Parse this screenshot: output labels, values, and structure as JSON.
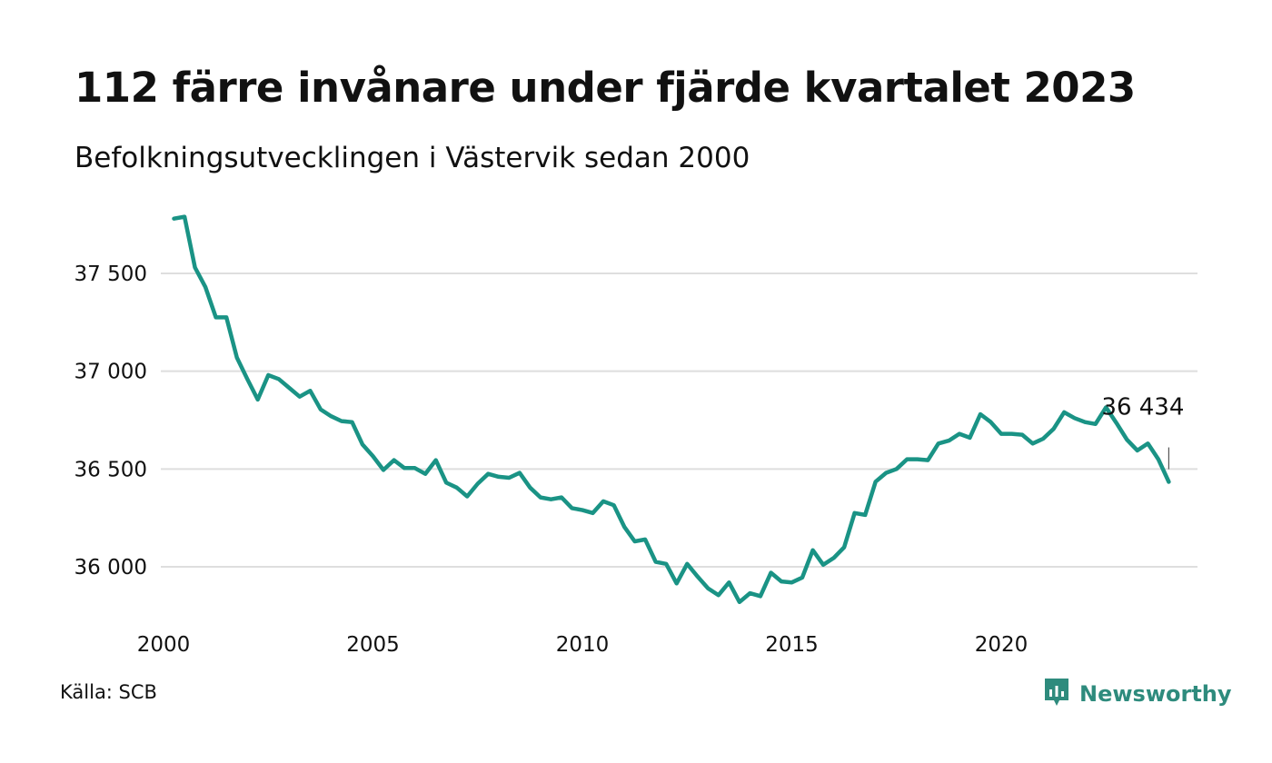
{
  "header": {
    "title": "112 färre invånare under fjärde kvartalet 2023",
    "subtitle": "Befolkningsutvecklingen i Västervik sedan 2000"
  },
  "footer": {
    "source": "Källa: SCB",
    "brand": "Newsworthy"
  },
  "colors": {
    "line": "#1a9385",
    "brand": "#2e8b7d",
    "grid": "#dedede"
  },
  "icons": {
    "brand_logo": "chart-speech-bubble-icon"
  },
  "chart_data": {
    "type": "line",
    "title": "112 färre invånare under fjärde kvartalet 2023",
    "subtitle": "Befolkningsutvecklingen i Västervik sedan 2000",
    "xlabel": "",
    "ylabel": "",
    "xlim": [
      2000,
      2024.6
    ],
    "ylim": [
      35800,
      37850
    ],
    "grid": true,
    "y_ticks": [
      36000,
      36500,
      37000,
      37500
    ],
    "y_tick_labels": [
      "36 000",
      "36 500",
      "37 000",
      "37 500"
    ],
    "x_ticks": [
      2000,
      2005,
      2010,
      2015,
      2020
    ],
    "x_tick_labels": [
      "2000",
      "2005",
      "2010",
      "2015",
      "2020"
    ],
    "annotation": {
      "text": "36 434",
      "x": 2024.0,
      "y": 36434
    },
    "series": [
      {
        "x": [
          2000.25,
          2000.5,
          2000.75,
          2001.0,
          2001.25,
          2001.5,
          2001.75,
          2002.0,
          2002.25,
          2002.5,
          2002.75,
          2003.0,
          2003.25,
          2003.5,
          2003.75,
          2004.0,
          2004.25,
          2004.5,
          2004.75,
          2005.0,
          2005.25,
          2005.5,
          2005.75,
          2006.0,
          2006.25,
          2006.5,
          2006.75,
          2007.0,
          2007.25,
          2007.5,
          2007.75,
          2008.0,
          2008.25,
          2008.5,
          2008.75,
          2009.0,
          2009.25,
          2009.5,
          2009.75,
          2010.0,
          2010.25,
          2010.5,
          2010.75,
          2011.0,
          2011.25,
          2011.5,
          2011.75,
          2012.0,
          2012.25,
          2012.5,
          2012.75,
          2013.0,
          2013.25,
          2013.5,
          2013.75,
          2014.0,
          2014.25,
          2014.5,
          2014.75,
          2015.0,
          2015.25,
          2015.5,
          2015.75,
          2016.0,
          2016.25,
          2016.5,
          2016.75,
          2017.0,
          2017.25,
          2017.5,
          2017.75,
          2018.0,
          2018.25,
          2018.5,
          2018.75,
          2019.0,
          2019.25,
          2019.5,
          2019.75,
          2020.0,
          2020.25,
          2020.5,
          2020.75,
          2021.0,
          2021.25,
          2021.5,
          2021.75,
          2022.0,
          2022.25,
          2022.5,
          2022.75,
          2023.0,
          2023.25,
          2023.5,
          2023.75,
          2024.0
        ],
        "y": [
          37780,
          37790,
          37530,
          37430,
          37275,
          37275,
          37070,
          36960,
          36855,
          36980,
          36960,
          36915,
          36870,
          36900,
          36805,
          36770,
          36745,
          36740,
          36625,
          36565,
          36495,
          36545,
          36505,
          36505,
          36475,
          36545,
          36430,
          36405,
          36360,
          36425,
          36475,
          36460,
          36455,
          36480,
          36405,
          36355,
          36345,
          36355,
          36300,
          36290,
          36275,
          36335,
          36315,
          36205,
          36130,
          36140,
          36025,
          36015,
          35915,
          36015,
          35950,
          35890,
          35855,
          35920,
          35820,
          35865,
          35850,
          35970,
          35925,
          35920,
          35945,
          36085,
          36010,
          36045,
          36100,
          36275,
          36265,
          36435,
          36480,
          36500,
          36550,
          36550,
          36545,
          36630,
          36645,
          36680,
          36660,
          36780,
          36740,
          36680,
          36680,
          36675,
          36630,
          36655,
          36705,
          36790,
          36760,
          36740,
          36730,
          36815,
          36735,
          36650,
          36595,
          36630,
          36550,
          36434
        ]
      }
    ]
  }
}
